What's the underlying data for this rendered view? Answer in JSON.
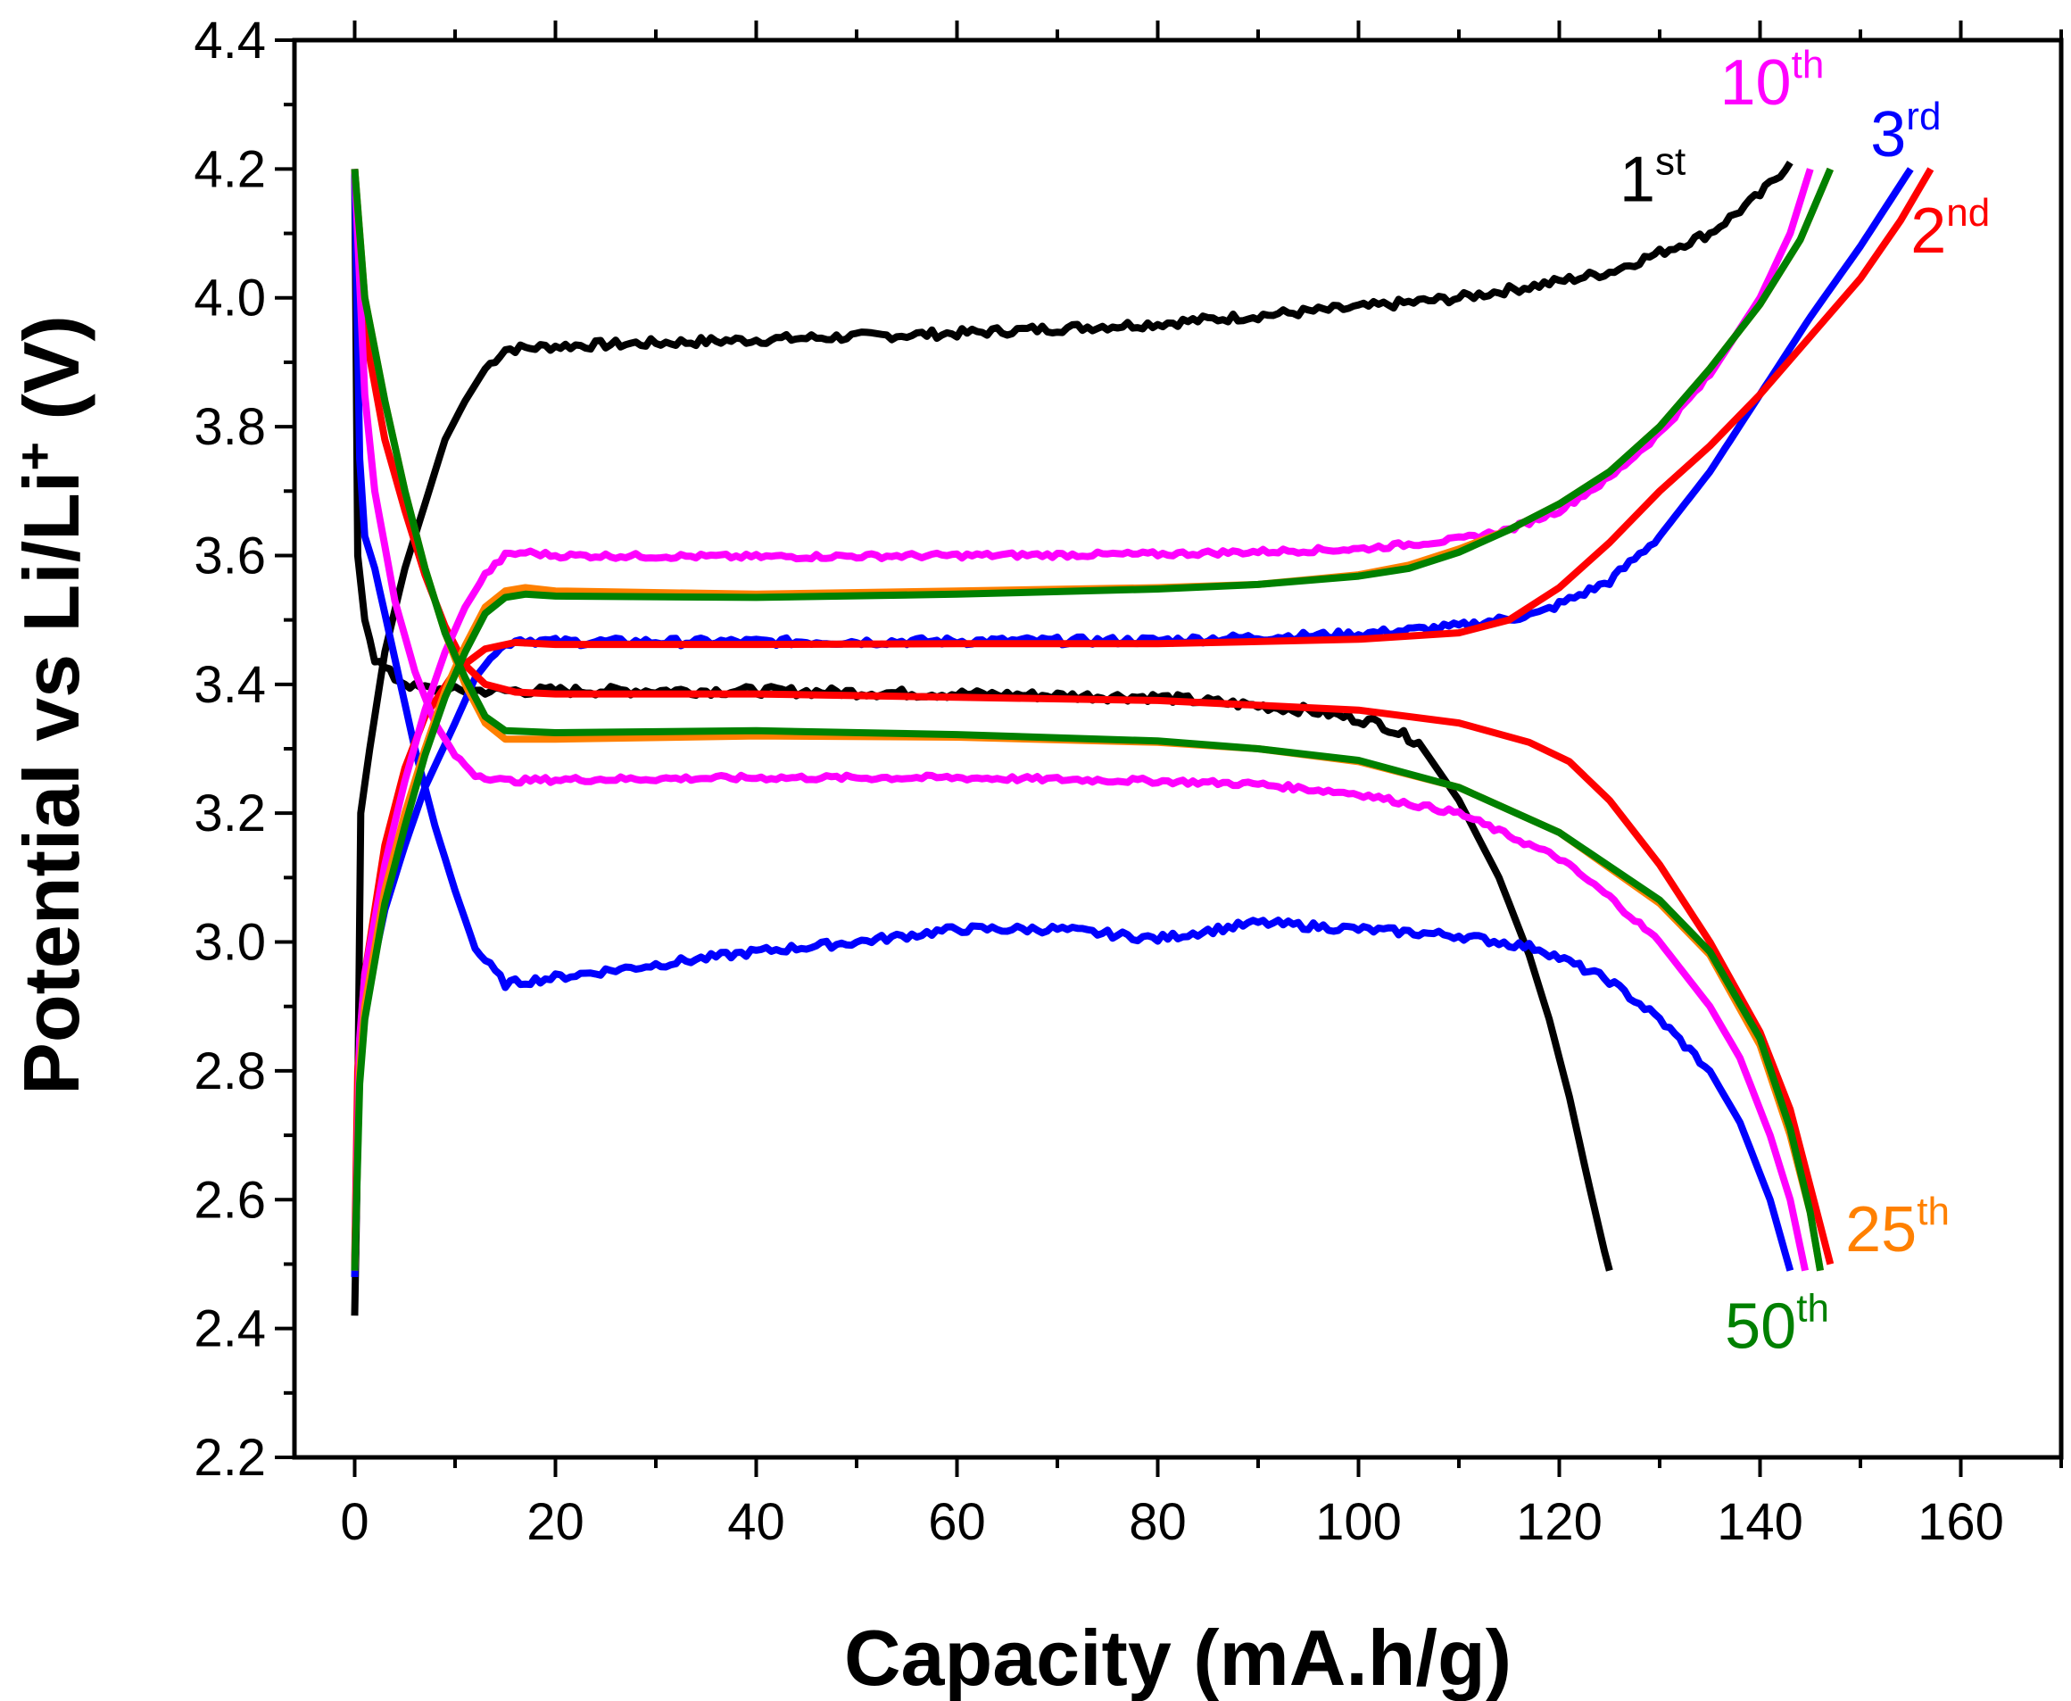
{
  "chart_data": {
    "type": "line",
    "title": "",
    "xlabel": "Capacity (mA.h/g)",
    "ylabel_main": "Potential vs Li/Li",
    "ylabel_sup": "+",
    "ylabel_tail": " (V)",
    "xlim": [
      -6,
      170
    ],
    "ylim": [
      2.2,
      4.4
    ],
    "xticks": [
      0,
      20,
      40,
      60,
      80,
      100,
      120,
      140,
      160
    ],
    "yticks": [
      2.2,
      2.4,
      2.6,
      2.8,
      3.0,
      3.2,
      3.4,
      3.6,
      3.8,
      4.0,
      4.2,
      4.4
    ],
    "grid": false,
    "legend": "inline labels near curve ends",
    "series": [
      {
        "name": "1st",
        "num": "1",
        "sup": "st",
        "color": "#000000",
        "noise": 0.007,
        "label": {
          "x": 126,
          "y": 4.15
        },
        "charge": [
          [
            0,
            2.42
          ],
          [
            0.2,
            2.6
          ],
          [
            0.6,
            3.2
          ],
          [
            1.5,
            3.3
          ],
          [
            3,
            3.45
          ],
          [
            5,
            3.58
          ],
          [
            7,
            3.68
          ],
          [
            9,
            3.78
          ],
          [
            11,
            3.84
          ],
          [
            13,
            3.89
          ],
          [
            15,
            3.92
          ],
          [
            20,
            3.925
          ],
          [
            30,
            3.93
          ],
          [
            40,
            3.935
          ],
          [
            60,
            3.945
          ],
          [
            80,
            3.96
          ],
          [
            100,
            3.985
          ],
          [
            110,
            4.0
          ],
          [
            118,
            4.02
          ],
          [
            125,
            4.04
          ],
          [
            130,
            4.07
          ],
          [
            135,
            4.1
          ],
          [
            140,
            4.16
          ],
          [
            143,
            4.21
          ]
        ],
        "discharge": [
          [
            0,
            4.2
          ],
          [
            0.3,
            3.6
          ],
          [
            1,
            3.5
          ],
          [
            2,
            3.44
          ],
          [
            4,
            3.41
          ],
          [
            6,
            3.395
          ],
          [
            10,
            3.39
          ],
          [
            20,
            3.39
          ],
          [
            40,
            3.39
          ],
          [
            60,
            3.385
          ],
          [
            80,
            3.38
          ],
          [
            95,
            3.36
          ],
          [
            102,
            3.34
          ],
          [
            106,
            3.31
          ],
          [
            110,
            3.22
          ],
          [
            114,
            3.1
          ],
          [
            117,
            2.98
          ],
          [
            119,
            2.88
          ],
          [
            121,
            2.76
          ],
          [
            123,
            2.62
          ],
          [
            124.5,
            2.52
          ],
          [
            125,
            2.49
          ]
        ]
      },
      {
        "name": "2nd",
        "num": "2",
        "sup": "nd",
        "color": "#ff0000",
        "noise": 0.0,
        "label": {
          "x": 155,
          "y": 4.07
        },
        "charge": [
          [
            0,
            2.5
          ],
          [
            0.3,
            2.8
          ],
          [
            1,
            2.95
          ],
          [
            3,
            3.15
          ],
          [
            5,
            3.27
          ],
          [
            7,
            3.35
          ],
          [
            10,
            3.42
          ],
          [
            13,
            3.455
          ],
          [
            16,
            3.465
          ],
          [
            20,
            3.462
          ],
          [
            40,
            3.462
          ],
          [
            60,
            3.463
          ],
          [
            80,
            3.463
          ],
          [
            100,
            3.47
          ],
          [
            110,
            3.48
          ],
          [
            115,
            3.5
          ],
          [
            120,
            3.55
          ],
          [
            125,
            3.62
          ],
          [
            130,
            3.7
          ],
          [
            135,
            3.77
          ],
          [
            140,
            3.85
          ],
          [
            145,
            3.94
          ],
          [
            150,
            4.03
          ],
          [
            154,
            4.12
          ],
          [
            157,
            4.2
          ]
        ],
        "discharge": [
          [
            0,
            4.2
          ],
          [
            1,
            3.95
          ],
          [
            3,
            3.78
          ],
          [
            5,
            3.67
          ],
          [
            7,
            3.57
          ],
          [
            9,
            3.49
          ],
          [
            11,
            3.43
          ],
          [
            13,
            3.4
          ],
          [
            16,
            3.388
          ],
          [
            20,
            3.385
          ],
          [
            40,
            3.385
          ],
          [
            60,
            3.38
          ],
          [
            80,
            3.375
          ],
          [
            100,
            3.36
          ],
          [
            110,
            3.34
          ],
          [
            117,
            3.31
          ],
          [
            121,
            3.28
          ],
          [
            125,
            3.22
          ],
          [
            130,
            3.12
          ],
          [
            135,
            3.0
          ],
          [
            140,
            2.86
          ],
          [
            143,
            2.74
          ],
          [
            145,
            2.62
          ],
          [
            147,
            2.5
          ]
        ]
      },
      {
        "name": "3rd",
        "num": "3",
        "sup": "rd",
        "color": "#0000ff",
        "noise": 0.006,
        "label": {
          "x": 151,
          "y": 4.22
        },
        "charge": [
          [
            0,
            2.48
          ],
          [
            0.3,
            2.75
          ],
          [
            1,
            2.9
          ],
          [
            3,
            3.05
          ],
          [
            5,
            3.15
          ],
          [
            7,
            3.24
          ],
          [
            10,
            3.34
          ],
          [
            12,
            3.41
          ],
          [
            14,
            3.45
          ],
          [
            16,
            3.47
          ],
          [
            20,
            3.466
          ],
          [
            40,
            3.466
          ],
          [
            60,
            3.467
          ],
          [
            80,
            3.468
          ],
          [
            100,
            3.478
          ],
          [
            110,
            3.49
          ],
          [
            118,
            3.51
          ],
          [
            125,
            3.56
          ],
          [
            130,
            3.63
          ],
          [
            135,
            3.73
          ],
          [
            140,
            3.85
          ],
          [
            145,
            3.97
          ],
          [
            150,
            4.08
          ],
          [
            155,
            4.2
          ]
        ],
        "discharge": [
          [
            0,
            4.2
          ],
          [
            0.5,
            3.75
          ],
          [
            1,
            3.63
          ],
          [
            2,
            3.58
          ],
          [
            4,
            3.44
          ],
          [
            6,
            3.3
          ],
          [
            8,
            3.18
          ],
          [
            10,
            3.08
          ],
          [
            12,
            2.99
          ],
          [
            15,
            2.935
          ],
          [
            20,
            2.945
          ],
          [
            30,
            2.965
          ],
          [
            40,
            2.985
          ],
          [
            50,
            3.0
          ],
          [
            60,
            3.02
          ],
          [
            70,
            3.02
          ],
          [
            80,
            3.005
          ],
          [
            90,
            3.03
          ],
          [
            100,
            3.02
          ],
          [
            110,
            3.01
          ],
          [
            118,
            2.99
          ],
          [
            125,
            2.94
          ],
          [
            130,
            2.88
          ],
          [
            135,
            2.8
          ],
          [
            138,
            2.72
          ],
          [
            141,
            2.6
          ],
          [
            143,
            2.49
          ]
        ]
      },
      {
        "name": "10th",
        "num": "10",
        "sup": "th",
        "color": "#ff00ff",
        "noise": 0.004,
        "label": {
          "x": 136,
          "y": 4.3
        },
        "charge": [
          [
            0,
            2.49
          ],
          [
            0.5,
            2.85
          ],
          [
            1,
            2.95
          ],
          [
            3,
            3.12
          ],
          [
            5,
            3.25
          ],
          [
            7,
            3.36
          ],
          [
            9,
            3.45
          ],
          [
            11,
            3.52
          ],
          [
            13,
            3.57
          ],
          [
            15,
            3.6
          ],
          [
            17,
            3.605
          ],
          [
            20,
            3.6
          ],
          [
            40,
            3.598
          ],
          [
            60,
            3.6
          ],
          [
            80,
            3.602
          ],
          [
            100,
            3.61
          ],
          [
            110,
            3.625
          ],
          [
            115,
            3.64
          ],
          [
            120,
            3.67
          ],
          [
            125,
            3.72
          ],
          [
            130,
            3.79
          ],
          [
            135,
            3.88
          ],
          [
            140,
            4.0
          ],
          [
            143,
            4.1
          ],
          [
            145,
            4.2
          ]
        ],
        "discharge": [
          [
            0,
            4.2
          ],
          [
            1,
            3.85
          ],
          [
            2,
            3.7
          ],
          [
            4,
            3.53
          ],
          [
            6,
            3.42
          ],
          [
            8,
            3.34
          ],
          [
            10,
            3.29
          ],
          [
            12,
            3.26
          ],
          [
            15,
            3.25
          ],
          [
            20,
            3.252
          ],
          [
            40,
            3.255
          ],
          [
            60,
            3.255
          ],
          [
            80,
            3.25
          ],
          [
            90,
            3.245
          ],
          [
            100,
            3.23
          ],
          [
            110,
            3.2
          ],
          [
            120,
            3.13
          ],
          [
            125,
            3.07
          ],
          [
            130,
            3.0
          ],
          [
            135,
            2.9
          ],
          [
            138,
            2.82
          ],
          [
            141,
            2.7
          ],
          [
            143,
            2.6
          ],
          [
            144.5,
            2.49
          ]
        ]
      },
      {
        "name": "25th",
        "num": "25",
        "sup": "th",
        "color": "#ff8000",
        "noise": 0.0,
        "label": {
          "x": 148.5,
          "y": 2.52
        },
        "charge": [
          [
            0,
            2.49
          ],
          [
            0.5,
            2.8
          ],
          [
            1,
            2.9
          ],
          [
            3,
            3.08
          ],
          [
            5,
            3.2
          ],
          [
            7,
            3.3
          ],
          [
            9,
            3.39
          ],
          [
            11,
            3.46
          ],
          [
            13,
            3.52
          ],
          [
            15,
            3.545
          ],
          [
            17,
            3.55
          ],
          [
            20,
            3.545
          ],
          [
            40,
            3.54
          ],
          [
            60,
            3.545
          ],
          [
            80,
            3.55
          ],
          [
            90,
            3.555
          ],
          [
            100,
            3.57
          ],
          [
            105,
            3.585
          ],
          [
            110,
            3.61
          ],
          [
            115,
            3.64
          ],
          [
            120,
            3.68
          ],
          [
            125,
            3.73
          ],
          [
            130,
            3.8
          ],
          [
            135,
            3.89
          ],
          [
            140,
            3.99
          ],
          [
            144,
            4.09
          ],
          [
            147,
            4.2
          ]
        ],
        "discharge": [
          [
            0,
            4.2
          ],
          [
            1,
            4.0
          ],
          [
            3,
            3.84
          ],
          [
            5,
            3.7
          ],
          [
            7,
            3.58
          ],
          [
            9,
            3.48
          ],
          [
            11,
            3.4
          ],
          [
            13,
            3.34
          ],
          [
            15,
            3.315
          ],
          [
            20,
            3.315
          ],
          [
            40,
            3.32
          ],
          [
            60,
            3.318
          ],
          [
            80,
            3.31
          ],
          [
            90,
            3.3
          ],
          [
            100,
            3.28
          ],
          [
            110,
            3.24
          ],
          [
            120,
            3.17
          ],
          [
            130,
            3.06
          ],
          [
            135,
            2.98
          ],
          [
            140,
            2.84
          ],
          [
            143,
            2.7
          ],
          [
            145,
            2.58
          ],
          [
            146,
            2.49
          ]
        ]
      },
      {
        "name": "50th",
        "num": "50",
        "sup": "th",
        "color": "#008000",
        "noise": 0.0,
        "label": {
          "x": 136.5,
          "y": 2.37
        },
        "charge": [
          [
            0,
            2.49
          ],
          [
            0.5,
            2.78
          ],
          [
            1,
            2.88
          ],
          [
            3,
            3.06
          ],
          [
            5,
            3.18
          ],
          [
            7,
            3.29
          ],
          [
            9,
            3.38
          ],
          [
            11,
            3.45
          ],
          [
            13,
            3.51
          ],
          [
            15,
            3.535
          ],
          [
            17,
            3.54
          ],
          [
            20,
            3.537
          ],
          [
            40,
            3.535
          ],
          [
            60,
            3.54
          ],
          [
            80,
            3.548
          ],
          [
            90,
            3.555
          ],
          [
            100,
            3.568
          ],
          [
            105,
            3.58
          ],
          [
            110,
            3.605
          ],
          [
            115,
            3.64
          ],
          [
            120,
            3.68
          ],
          [
            125,
            3.73
          ],
          [
            130,
            3.8
          ],
          [
            135,
            3.89
          ],
          [
            140,
            3.99
          ],
          [
            144,
            4.09
          ],
          [
            147,
            4.2
          ]
        ],
        "discharge": [
          [
            0,
            4.2
          ],
          [
            1,
            4.0
          ],
          [
            3,
            3.84
          ],
          [
            5,
            3.7
          ],
          [
            7,
            3.58
          ],
          [
            9,
            3.48
          ],
          [
            11,
            3.41
          ],
          [
            13,
            3.35
          ],
          [
            15,
            3.328
          ],
          [
            20,
            3.325
          ],
          [
            40,
            3.328
          ],
          [
            60,
            3.322
          ],
          [
            80,
            3.312
          ],
          [
            90,
            3.3
          ],
          [
            100,
            3.282
          ],
          [
            110,
            3.24
          ],
          [
            120,
            3.17
          ],
          [
            130,
            3.065
          ],
          [
            135,
            2.985
          ],
          [
            140,
            2.85
          ],
          [
            143,
            2.71
          ],
          [
            145,
            2.58
          ],
          [
            146,
            2.49
          ]
        ]
      }
    ]
  }
}
